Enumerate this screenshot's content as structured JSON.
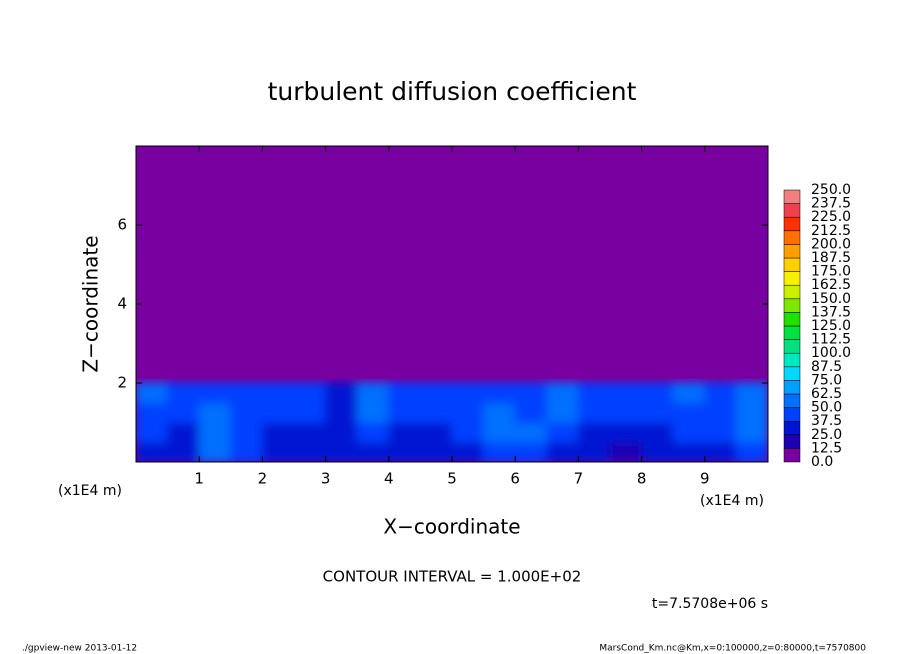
{
  "chart_data": {
    "type": "contour",
    "title": "turbulent diffusion coefficient",
    "xlabel": "X−coordinate",
    "ylabel": "Z−coordinate",
    "x_unit": "(x1E4 m)",
    "y_unit": "(x1E4 m)",
    "annotation": "CONTOUR INTERVAL = 1.000E+02",
    "time_label": "t=7.5708e+06 s",
    "footer_left": "./gpview-new  2013-01-12",
    "footer_right": "MarsCond_Km.nc@Km,x=0:100000,z=0:80000,t=7570800",
    "xlim": [
      0,
      10
    ],
    "ylim": [
      0,
      8
    ],
    "xticks": [
      1,
      2,
      3,
      4,
      5,
      6,
      7,
      8,
      9
    ],
    "yticks": [
      2,
      4,
      6
    ],
    "x": [
      0.25,
      0.75,
      1.25,
      1.75,
      2.25,
      2.75,
      3.25,
      3.75,
      4.25,
      4.75,
      5.25,
      5.75,
      6.25,
      6.75,
      7.25,
      7.75,
      8.25,
      8.75,
      9.25,
      9.75
    ],
    "y": [
      0.25,
      0.75,
      1.25,
      1.75
    ],
    "values": [
      [
        30,
        28,
        55,
        40,
        28,
        26,
        30,
        34,
        28,
        26,
        32,
        40,
        45,
        34,
        26,
        22,
        28,
        34,
        30,
        45
      ],
      [
        38,
        35,
        62,
        45,
        32,
        30,
        34,
        44,
        36,
        32,
        38,
        58,
        55,
        42,
        34,
        30,
        34,
        40,
        38,
        55
      ],
      [
        45,
        42,
        50,
        48,
        40,
        38,
        36,
        52,
        44,
        40,
        45,
        52,
        48,
        50,
        42,
        40,
        44,
        48,
        46,
        60
      ],
      [
        50,
        44,
        40,
        46,
        48,
        42,
        30,
        50,
        46,
        38,
        48,
        46,
        42,
        52,
        48,
        44,
        46,
        50,
        48,
        52
      ]
    ],
    "levels": [
      {
        "value": 0,
        "label": "0.0"
      },
      {
        "value": 12.5,
        "label": "12.5"
      },
      {
        "value": 25,
        "label": "25.0"
      },
      {
        "value": 37.5,
        "label": "37.5"
      },
      {
        "value": 50,
        "label": "50.0"
      },
      {
        "value": 62.5,
        "label": "62.5"
      },
      {
        "value": 75,
        "label": "75.0"
      },
      {
        "value": 87.5,
        "label": "87.5"
      },
      {
        "value": 100,
        "label": "100.0"
      },
      {
        "value": 112.5,
        "label": "112.5"
      },
      {
        "value": 125,
        "label": "125.0"
      },
      {
        "value": 137.5,
        "label": "137.5"
      },
      {
        "value": 150,
        "label": "150.0"
      },
      {
        "value": 162.5,
        "label": "162.5"
      },
      {
        "value": 175,
        "label": "175.0"
      },
      {
        "value": 187.5,
        "label": "187.5"
      },
      {
        "value": 200,
        "label": "200.0"
      },
      {
        "value": 212.5,
        "label": "212.5"
      },
      {
        "value": 225,
        "label": "225.0"
      },
      {
        "value": 237.5,
        "label": "237.5"
      },
      {
        "value": 250,
        "label": "250.0"
      }
    ],
    "colors": [
      "#7800a0",
      "#1e00b4",
      "#0014d2",
      "#0040ff",
      "#0070ff",
      "#00a0ff",
      "#00d8ff",
      "#00e8c0",
      "#00e080",
      "#00e040",
      "#20e000",
      "#80e800",
      "#c8f000",
      "#f8f000",
      "#ffd000",
      "#ffa000",
      "#ff7000",
      "#ff3000",
      "#f04050",
      "#f08080"
    ]
  }
}
